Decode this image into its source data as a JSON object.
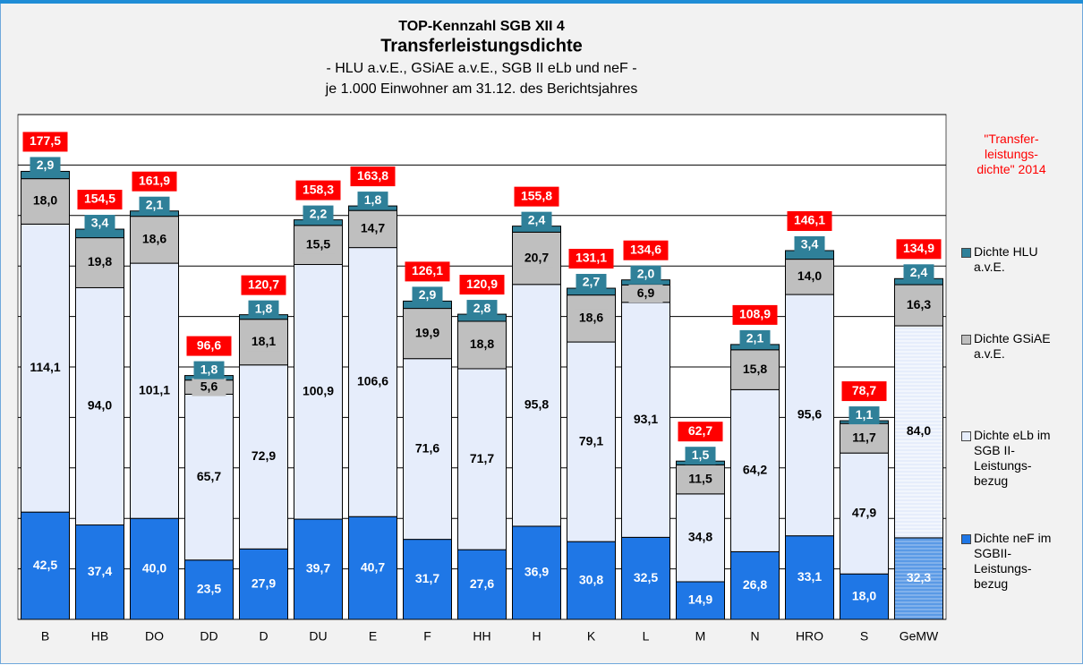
{
  "chart_data": {
    "type": "bar",
    "stacked": true,
    "supertitle": "TOP-Kennzahl SGB XII 4",
    "title": "Transferleistungsdichte",
    "subtitle": [
      "- HLU a.v.E., GSiAE a.v.E., SGB II eLb und neF -",
      "je 1.000 Einwohner am 31.12. des Berichtsjahres"
    ],
    "note": "\"Transfer-\nleistungs-\ndichte\" 2014",
    "categories": [
      "B",
      "HB",
      "DO",
      "DD",
      "D",
      "DU",
      "E",
      "F",
      "HH",
      "H",
      "K",
      "L",
      "M",
      "N",
      "HRO",
      "S",
      "GeMW"
    ],
    "series": [
      {
        "name": "Dichte neF im\nSGBII-\nLeistungs-\nbezug",
        "color": "#1f77e6",
        "values": [
          42.5,
          37.4,
          40.0,
          23.5,
          27.9,
          39.7,
          40.7,
          31.7,
          27.6,
          36.9,
          30.8,
          32.5,
          14.9,
          26.8,
          33.1,
          18.0,
          32.3
        ],
        "value_labels": [
          "42,5",
          "37,4",
          "40,0",
          "23,5",
          "27,9",
          "39,7",
          "40,7",
          "31,7",
          "27,6",
          "36,9",
          "30,8",
          "32,5",
          "14,9",
          "26,8",
          "33,1",
          "18,0",
          "32,3"
        ]
      },
      {
        "name": "Dichte eLb im\nSGB II-\nLeistungs-\nbezug",
        "color": "#e6edfb",
        "values": [
          114.1,
          94.0,
          101.1,
          65.7,
          72.9,
          100.9,
          106.6,
          71.6,
          71.7,
          95.8,
          79.1,
          93.1,
          34.8,
          64.2,
          95.6,
          47.9,
          84.0
        ],
        "value_labels": [
          "114,1",
          "94,0",
          "101,1",
          "65,7",
          "72,9",
          "100,9",
          "106,6",
          "71,6",
          "71,7",
          "95,8",
          "79,1",
          "93,1",
          "34,8",
          "64,2",
          "95,6",
          "47,9",
          "84,0"
        ]
      },
      {
        "name": "Dichte GSiAE\na.v.E.",
        "color": "#bfbfbf",
        "values": [
          18.0,
          19.8,
          18.6,
          5.6,
          18.1,
          15.5,
          14.7,
          19.9,
          18.8,
          20.7,
          18.6,
          6.9,
          11.5,
          15.8,
          14.0,
          11.7,
          16.3
        ],
        "value_labels": [
          "18,0",
          "19,8",
          "18,6",
          "5,6",
          "18,1",
          "15,5",
          "14,7",
          "19,9",
          "18,8",
          "20,7",
          "18,6",
          "6,9",
          "11,5",
          "15,8",
          "14,0",
          "11,7",
          "16,3"
        ]
      },
      {
        "name": "Dichte HLU\na.v.E.",
        "color": "#2f8099",
        "values": [
          2.9,
          3.4,
          2.1,
          1.8,
          1.8,
          2.2,
          1.8,
          2.9,
          2.8,
          2.4,
          2.7,
          2.0,
          1.5,
          2.1,
          3.4,
          1.1,
          2.4
        ],
        "value_labels": [
          "2,9",
          "3,4",
          "2,1",
          "1,8",
          "1,8",
          "2,2",
          "1,8",
          "2,9",
          "2,8",
          "2,4",
          "2,7",
          "2,0",
          "1,5",
          "2,1",
          "3,4",
          "1,1",
          "2,4"
        ]
      }
    ],
    "totals": {
      "values": [
        177.5,
        154.5,
        161.9,
        96.6,
        120.7,
        158.3,
        163.8,
        126.1,
        120.9,
        155.8,
        131.1,
        134.6,
        62.7,
        108.9,
        146.1,
        78.7,
        134.9
      ],
      "value_labels": [
        "177,5",
        "154,5",
        "161,9",
        "96,6",
        "120,7",
        "158,3",
        "163,8",
        "126,1",
        "120,9",
        "155,8",
        "131,1",
        "134,6",
        "62,7",
        "108,9",
        "146,1",
        "78,7",
        "134,9"
      ],
      "color": "#ff0000"
    },
    "ylim": [
      0,
      200
    ],
    "yticks": [
      0,
      20,
      40,
      60,
      80,
      100,
      120,
      140,
      160,
      180,
      200
    ],
    "grid": true
  }
}
